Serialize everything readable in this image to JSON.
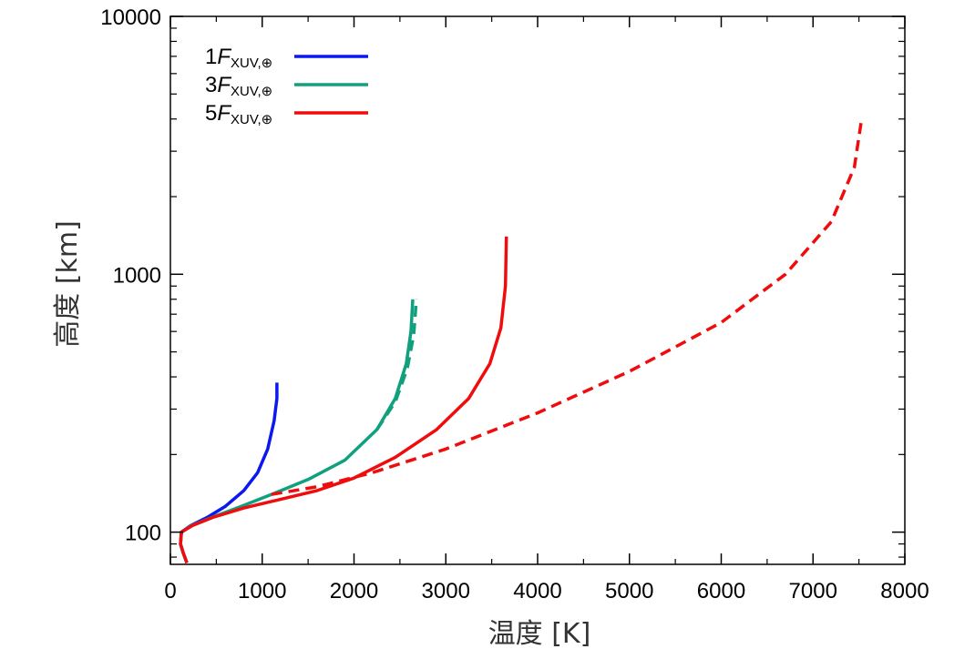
{
  "chart_data": {
    "type": "line",
    "title": "",
    "xlabel": "温度 [K]",
    "ylabel": "高度 [km]",
    "xlim": [
      0,
      8000
    ],
    "ylim": [
      75,
      10000
    ],
    "yscale": "log",
    "grid": false,
    "legend_position": "top-left",
    "x_ticks": [
      0,
      1000,
      2000,
      3000,
      4000,
      5000,
      6000,
      7000,
      8000
    ],
    "x_tick_labels": [
      "0",
      "1000",
      "2000",
      "3000",
      "4000",
      "5000",
      "6000",
      "7000",
      "8000"
    ],
    "y_ticks": [
      100,
      1000,
      10000
    ],
    "y_tick_labels": [
      "100",
      "1000",
      "10000"
    ],
    "legend": [
      {
        "prefix": "1",
        "symbol": "F",
        "subscript": "XUV,⊕",
        "color": "#0b18f0"
      },
      {
        "prefix": "3",
        "symbol": "F",
        "subscript": "XUV,⊕",
        "color": "#10a07e"
      },
      {
        "prefix": "5",
        "symbol": "F",
        "subscript": "XUV,⊕",
        "color": "#f00c0c"
      }
    ],
    "series": [
      {
        "color": "#0b18f0",
        "dash": false,
        "points": [
          [
            180,
            76
          ],
          [
            140,
            83
          ],
          [
            110,
            90
          ],
          [
            120,
            100
          ],
          [
            220,
            106
          ],
          [
            400,
            114
          ],
          [
            600,
            126
          ],
          [
            800,
            145
          ],
          [
            950,
            170
          ],
          [
            1060,
            210
          ],
          [
            1130,
            270
          ],
          [
            1160,
            330
          ],
          [
            1160,
            380
          ]
        ]
      },
      {
        "color": "#10a07e",
        "dash": false,
        "points": [
          [
            180,
            76
          ],
          [
            140,
            83
          ],
          [
            110,
            90
          ],
          [
            120,
            100
          ],
          [
            230,
            106
          ],
          [
            450,
            114
          ],
          [
            750,
            125
          ],
          [
            1100,
            140
          ],
          [
            1500,
            160
          ],
          [
            1900,
            190
          ],
          [
            2250,
            250
          ],
          [
            2450,
            330
          ],
          [
            2570,
            450
          ],
          [
            2620,
            600
          ],
          [
            2640,
            800
          ]
        ]
      },
      {
        "color": "#10a07e",
        "dash": true,
        "points": [
          [
            2250,
            250
          ],
          [
            2450,
            320
          ],
          [
            2580,
            430
          ],
          [
            2650,
            580
          ],
          [
            2680,
            800
          ]
        ]
      },
      {
        "color": "#f00c0c",
        "dash": false,
        "points": [
          [
            180,
            76
          ],
          [
            140,
            83
          ],
          [
            110,
            90
          ],
          [
            120,
            100
          ],
          [
            240,
            106
          ],
          [
            460,
            114
          ],
          [
            800,
            124
          ],
          [
            1200,
            134
          ],
          [
            1600,
            145
          ],
          [
            2000,
            162
          ],
          [
            2450,
            195
          ],
          [
            2900,
            250
          ],
          [
            3250,
            330
          ],
          [
            3480,
            450
          ],
          [
            3600,
            620
          ],
          [
            3650,
            900
          ],
          [
            3660,
            1400
          ]
        ]
      },
      {
        "color": "#f00c0c",
        "dash": true,
        "points": [
          [
            1100,
            140
          ],
          [
            1600,
            150
          ],
          [
            2200,
            170
          ],
          [
            3000,
            210
          ],
          [
            4000,
            290
          ],
          [
            5000,
            420
          ],
          [
            6000,
            650
          ],
          [
            6700,
            1000
          ],
          [
            7200,
            1600
          ],
          [
            7450,
            2600
          ],
          [
            7530,
            4000
          ]
        ]
      }
    ]
  }
}
